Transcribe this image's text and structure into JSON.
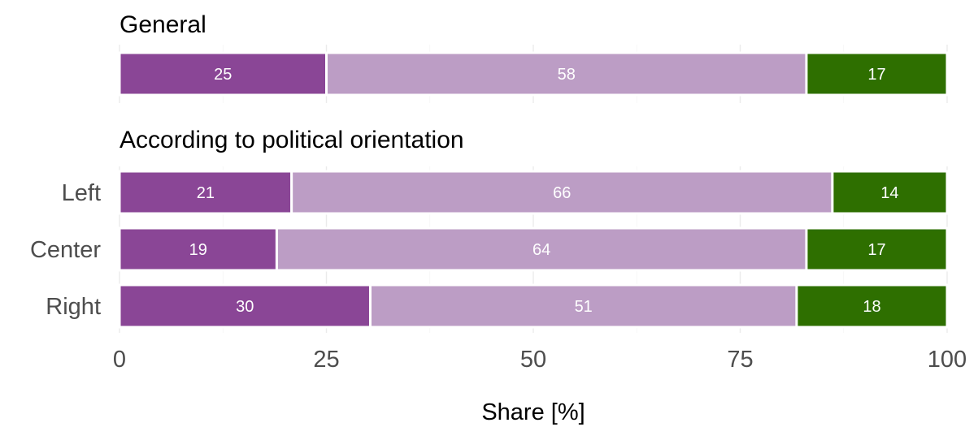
{
  "chart_data": {
    "type": "bar",
    "orientation": "horizontal",
    "stacked": true,
    "xlabel": "Share [%]",
    "xlim": [
      0,
      100
    ],
    "xticks": [
      "0",
      "25",
      "50",
      "75",
      "100"
    ],
    "legend": "none",
    "colors": [
      "#8a4696",
      "#bc9dc5",
      "#2e6f00"
    ],
    "panels": [
      {
        "title": "General",
        "categories": [
          ""
        ],
        "rows": [
          {
            "label": "",
            "values": [
              25,
              58,
              17
            ],
            "labels": [
              "25",
              "58",
              "17"
            ]
          }
        ]
      },
      {
        "title": "According to political orientation",
        "categories": [
          "Left",
          "Center",
          "Right"
        ],
        "rows": [
          {
            "label": "Left",
            "values": [
              21,
              66,
              14
            ],
            "labels": [
              "21",
              "66",
              "14"
            ]
          },
          {
            "label": "Center",
            "values": [
              19,
              64,
              17
            ],
            "labels": [
              "19",
              "64",
              "17"
            ]
          },
          {
            "label": "Right",
            "values": [
              30,
              51,
              18
            ],
            "labels": [
              "30",
              "51",
              "18"
            ]
          }
        ]
      }
    ]
  }
}
